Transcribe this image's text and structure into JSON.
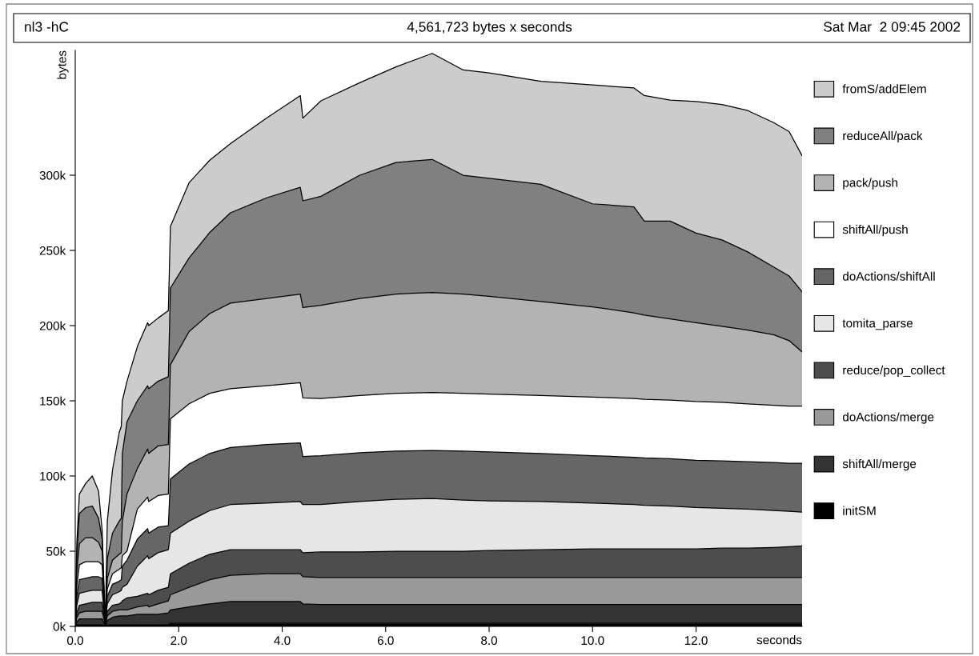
{
  "chart_data": {
    "type": "area",
    "stacked": true,
    "title": "nl3 -hC",
    "subtitle": "4,561,723 bytes x seconds",
    "annotations": [
      "Sat Mar  2 09:45 2002"
    ],
    "xlabel": "seconds",
    "ylabel": "bytes",
    "x": [
      0,
      0.03,
      0.08,
      0.2,
      0.33,
      0.45,
      0.52,
      0.56,
      0.58,
      0.62,
      0.72,
      0.85,
      0.89,
      0.91,
      1.0,
      1.2,
      1.4,
      1.42,
      1.6,
      1.8,
      1.84,
      2.2,
      2.6,
      3.0,
      3.7,
      4.35,
      4.4,
      4.75,
      5.5,
      6.2,
      6.9,
      7.5,
      8.0,
      9.0,
      10.0,
      10.8,
      11.0,
      11.5,
      12.0,
      12.5,
      13.0,
      13.5,
      13.8,
      14.05
    ],
    "xlim": [
      0,
      14.05
    ],
    "xticks": [
      {
        "value": 0,
        "label": "0.0"
      },
      {
        "value": 2,
        "label": "2.0"
      },
      {
        "value": 4,
        "label": "4.0"
      },
      {
        "value": 6,
        "label": "6.0"
      },
      {
        "value": 8,
        "label": "8.0"
      },
      {
        "value": 10,
        "label": "10.0"
      },
      {
        "value": 12,
        "label": "12.0"
      }
    ],
    "ylim": [
      0,
      383000
    ],
    "yticks": [
      {
        "value": 0,
        "label": "0k"
      },
      {
        "value": 50000,
        "label": "50k"
      },
      {
        "value": 100000,
        "label": "100k"
      },
      {
        "value": 150000,
        "label": "150k"
      },
      {
        "value": 200000,
        "label": "200k"
      },
      {
        "value": 250000,
        "label": "250k"
      },
      {
        "value": 300000,
        "label": "300k"
      }
    ],
    "grid": false,
    "legend": "right",
    "series": [
      {
        "name": "initSM",
        "color": "#000000",
        "values": [
          0,
          1000,
          1000,
          1000,
          1000,
          1000,
          1000,
          500,
          0,
          1000,
          1000,
          1000,
          1000,
          1000,
          1000,
          1000,
          1000,
          1000,
          1000,
          1000,
          2000,
          2000,
          2000,
          2000,
          2000,
          2000,
          2000,
          2000,
          2000,
          2000,
          2000,
          2000,
          2000,
          2000,
          2000,
          2000,
          2000,
          2000,
          2000,
          2000,
          2000,
          2000,
          2000,
          2000
        ]
      },
      {
        "name": "shiftAll/merge",
        "color": "#333333",
        "values": [
          0,
          2000,
          4000,
          4000,
          4000,
          4000,
          4000,
          1500,
          0,
          3000,
          5000,
          6000,
          6000,
          6000,
          6000,
          7000,
          7000,
          7000,
          7000,
          8000,
          9000,
          11000,
          13000,
          14500,
          14500,
          14500,
          13000,
          12500,
          12500,
          12500,
          12500,
          12500,
          12500,
          12500,
          12500,
          12500,
          12500,
          12500,
          12500,
          12500,
          12500,
          12500,
          12500,
          12500
        ]
      },
      {
        "name": "doActions/merge",
        "color": "#999999",
        "values": [
          0,
          3000,
          4000,
          5000,
          5000,
          5000,
          5000,
          2000,
          0,
          3000,
          4000,
          4000,
          4000,
          4000,
          4000,
          5000,
          6000,
          5000,
          7000,
          8000,
          10000,
          13000,
          16000,
          17500,
          18500,
          18500,
          18000,
          18000,
          18000,
          18000,
          18000,
          18000,
          18000,
          18000,
          18000,
          18000,
          18000,
          18000,
          18000,
          18000,
          18000,
          18000,
          18000,
          18000
        ]
      },
      {
        "name": "reduce/pop_collect",
        "color": "#4d4d4d",
        "values": [
          0,
          3000,
          5000,
          5000,
          6000,
          6000,
          6000,
          2000,
          0,
          3000,
          4000,
          4000,
          5000,
          6000,
          8000,
          7000,
          8000,
          8000,
          9000,
          9000,
          14000,
          16000,
          17000,
          17000,
          16000,
          16000,
          16000,
          17000,
          17000,
          17500,
          17500,
          17500,
          18000,
          18500,
          19000,
          19000,
          19000,
          19000,
          19000,
          19500,
          19500,
          20000,
          20500,
          21000
        ]
      },
      {
        "name": "tomita_parse",
        "color": "#e6e6e6",
        "values": [
          0,
          5000,
          8000,
          8000,
          8000,
          8000,
          8000,
          3000,
          0,
          5000,
          7000,
          8000,
          8000,
          9000,
          9000,
          20000,
          25000,
          24000,
          25000,
          25000,
          27000,
          28000,
          29000,
          30000,
          31000,
          32000,
          32000,
          31500,
          33500,
          34500,
          35000,
          34000,
          33000,
          32000,
          30500,
          29500,
          29000,
          28500,
          27500,
          26500,
          26000,
          24500,
          23500,
          22500
        ]
      },
      {
        "name": "doActions/shiftAll",
        "color": "#666666",
        "values": [
          0,
          6000,
          9000,
          9000,
          9000,
          9000,
          8000,
          3000,
          0,
          5000,
          7000,
          7000,
          7000,
          14000,
          16000,
          18000,
          18000,
          17000,
          17000,
          16000,
          36000,
          38000,
          38000,
          38000,
          39000,
          39000,
          32000,
          32500,
          32500,
          32000,
          32000,
          32500,
          32500,
          32000,
          31500,
          31500,
          31500,
          31500,
          31500,
          31500,
          31500,
          32000,
          32000,
          32500
        ]
      },
      {
        "name": "shiftAll/push",
        "color": "#ffffff",
        "values": [
          0,
          7000,
          10000,
          11000,
          10000,
          10000,
          9000,
          3000,
          0,
          5000,
          7000,
          8000,
          8000,
          7000,
          6000,
          20000,
          21000,
          21000,
          21000,
          21000,
          40000,
          40000,
          40000,
          39000,
          39000,
          40000,
          39000,
          38000,
          38000,
          38500,
          38500,
          38500,
          38500,
          38500,
          39000,
          39000,
          39000,
          39000,
          39000,
          39000,
          38500,
          38000,
          38000,
          38000
        ]
      },
      {
        "name": "pack/push",
        "color": "#b3b3b3",
        "values": [
          0,
          9000,
          14000,
          16000,
          16000,
          13000,
          9000,
          3000,
          0,
          7000,
          9000,
          10000,
          10000,
          23000,
          38000,
          27000,
          32000,
          32000,
          33000,
          33000,
          36000,
          48000,
          53000,
          57000,
          58000,
          59000,
          60000,
          62000,
          64500,
          66000,
          66500,
          66000,
          65000,
          62500,
          60000,
          57000,
          56000,
          54000,
          52500,
          50500,
          49000,
          47000,
          43500,
          36000
        ]
      },
      {
        "name": "reduceAll/pack",
        "color": "#808080",
        "values": [
          0,
          12000,
          20000,
          20000,
          21000,
          16000,
          8000,
          2000,
          0,
          13000,
          18000,
          22000,
          23000,
          45000,
          48000,
          45000,
          42000,
          43000,
          43000,
          45000,
          51000,
          49000,
          54000,
          60000,
          67000,
          71000,
          71000,
          72500,
          82000,
          87500,
          88500,
          79000,
          78500,
          78000,
          68500,
          70500,
          62500,
          65000,
          59500,
          57500,
          52000,
          45000,
          43000,
          40000
        ]
      },
      {
        "name": "fromS/addElem",
        "color": "#cccccc",
        "values": [
          0,
          7000,
          13000,
          16000,
          20000,
          18000,
          6000,
          2000,
          0,
          25000,
          42000,
          59000,
          61000,
          35000,
          27000,
          36000,
          42000,
          42000,
          42000,
          44000,
          41000,
          50000,
          48000,
          46000,
          53000,
          61000,
          55000,
          63500,
          61500,
          63500,
          70500,
          70000,
          70000,
          68500,
          79000,
          79000,
          83500,
          80500,
          87500,
          90000,
          94000,
          96000,
          96000,
          90500
        ]
      }
    ]
  }
}
